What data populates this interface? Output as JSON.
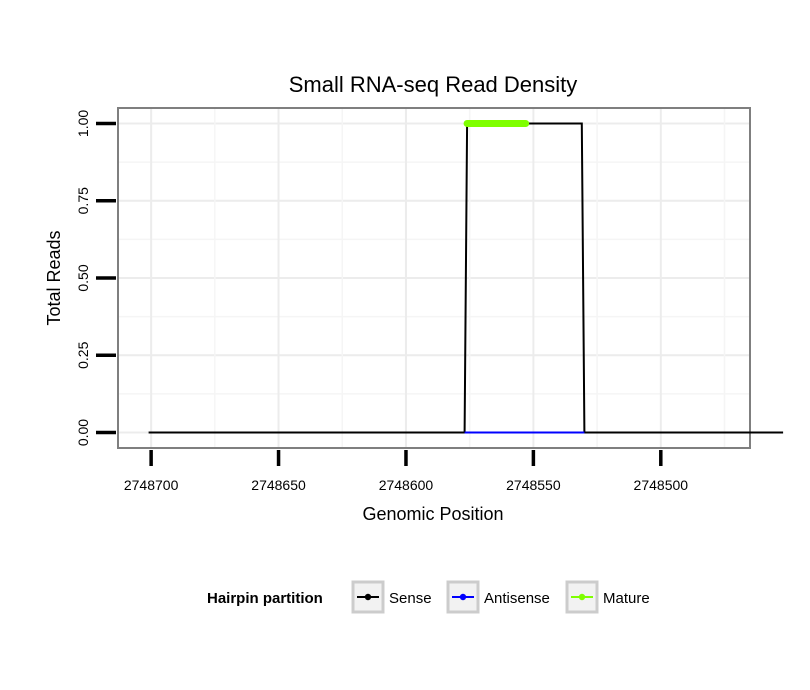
{
  "chart_data": {
    "type": "line",
    "title": "Small RNA-seq Read Density",
    "xlabel": "Genomic Position",
    "ylabel": "Total Reads",
    "x_reversed": true,
    "xlim": [
      2748713,
      2748465
    ],
    "ylim": [
      -0.05,
      1.05
    ],
    "x_ticks": [
      2748700,
      2748650,
      2748600,
      2748550,
      2748500
    ],
    "x_tick_labels": [
      "2748700",
      "2748650",
      "2748600",
      "2748550",
      "2748500"
    ],
    "y_ticks": [
      0,
      0.25,
      0.5,
      0.75,
      1.0
    ],
    "y_tick_labels": [
      "0.00",
      "0.25",
      "0.50",
      "0.75",
      "1.00"
    ],
    "grid": true,
    "legend": {
      "title": "Hairpin partition",
      "position": "bottom",
      "entries": [
        {
          "name": "Sense",
          "color": "#000000"
        },
        {
          "name": "Antisense",
          "color": "#0000ff"
        },
        {
          "name": "Mature",
          "color": "#7fff00"
        }
      ]
    },
    "series": [
      {
        "name": "Sense",
        "color": "#000000",
        "x": [
          2748701,
          2748577,
          2748576,
          2748531,
          2748530,
          2748452
        ],
        "y": [
          0,
          0,
          1,
          1,
          0,
          0
        ]
      },
      {
        "name": "Antisense",
        "color": "#0000ff",
        "x": [
          2748577,
          2748530
        ],
        "y": [
          0,
          0
        ]
      },
      {
        "name": "Mature",
        "color": "#7fff00",
        "x": [
          2748576,
          2748553
        ],
        "y": [
          1,
          1
        ]
      }
    ]
  }
}
